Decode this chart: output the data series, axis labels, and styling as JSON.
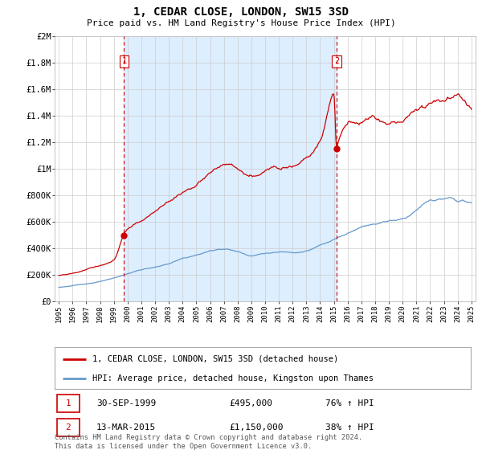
{
  "title": "1, CEDAR CLOSE, LONDON, SW15 3SD",
  "subtitle": "Price paid vs. HM Land Registry's House Price Index (HPI)",
  "ylim": [
    0,
    2000000
  ],
  "yticks": [
    0,
    200000,
    400000,
    600000,
    800000,
    1000000,
    1200000,
    1400000,
    1600000,
    1800000,
    2000000
  ],
  "ytick_labels": [
    "£0",
    "£200K",
    "£400K",
    "£600K",
    "£800K",
    "£1M",
    "£1.2M",
    "£1.4M",
    "£1.6M",
    "£1.8M",
    "£2M"
  ],
  "x_start_year": 1995,
  "x_end_year": 2025,
  "sale1_year": 1999.75,
  "sale1_price": 495000,
  "sale1_label": "1",
  "sale1_date": "30-SEP-1999",
  "sale1_hpi": "76% ↑ HPI",
  "sale2_year": 2015.2,
  "sale2_price": 1150000,
  "sale2_label": "2",
  "sale2_date": "13-MAR-2015",
  "sale2_hpi": "38% ↑ HPI",
  "line1_color": "#cc0000",
  "line2_color": "#6699cc",
  "vline_color": "#cc0000",
  "shade_color": "#ddeeff",
  "grid_color": "#cccccc",
  "bg_color": "#ffffff",
  "legend_line1": "1, CEDAR CLOSE, LONDON, SW15 3SD (detached house)",
  "legend_line2": "HPI: Average price, detached house, Kingston upon Thames",
  "footer1": "Contains HM Land Registry data © Crown copyright and database right 2024.",
  "footer2": "This data is licensed under the Open Government Licence v3.0."
}
